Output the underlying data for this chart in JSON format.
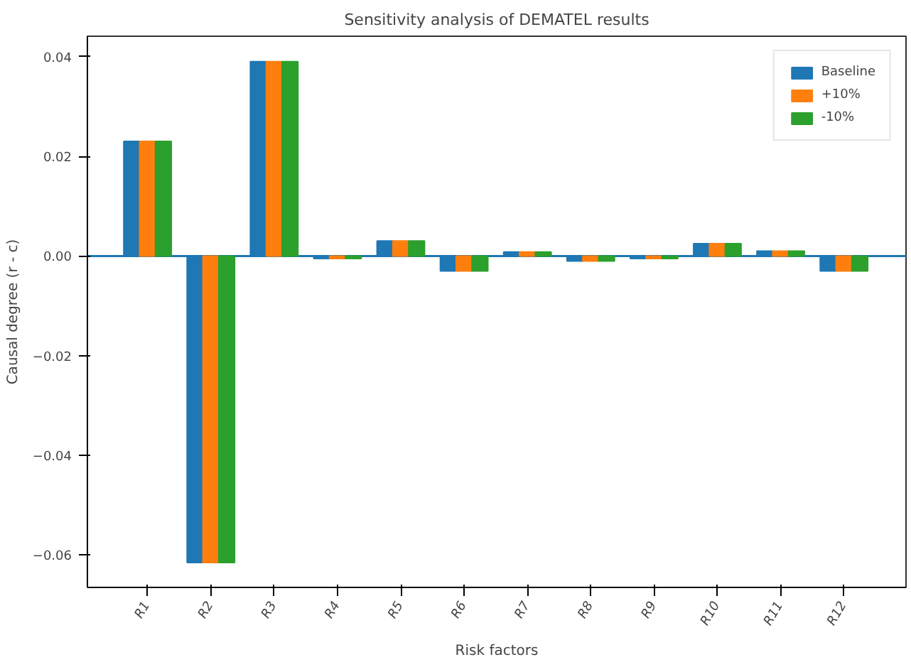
{
  "chart_data": {
    "type": "bar",
    "title": "Sensitivity analysis of DEMATEL results",
    "xlabel": "Risk factors",
    "ylabel": "Causal degree (r - c)",
    "categories": [
      "R1",
      "R2",
      "R3",
      "R4",
      "R5",
      "R6",
      "R7",
      "R8",
      "R9",
      "R10",
      "R11",
      "R12"
    ],
    "series": [
      {
        "name": "Baseline",
        "color": "#1f77b4",
        "values": [
          0.023,
          -0.0615,
          0.039,
          -0.0005,
          0.003,
          -0.003,
          0.0008,
          -0.001,
          -0.0005,
          0.0025,
          0.001,
          -0.003
        ]
      },
      {
        "name": "+10%",
        "color": "#ff7f0e",
        "values": [
          0.023,
          -0.0615,
          0.039,
          -0.0005,
          0.003,
          -0.003,
          0.0008,
          -0.001,
          -0.0005,
          0.0025,
          0.001,
          -0.003
        ]
      },
      {
        "name": "-10%",
        "color": "#2ca02c",
        "values": [
          0.023,
          -0.0615,
          0.039,
          -0.0005,
          0.003,
          -0.003,
          0.0008,
          -0.001,
          -0.0005,
          0.0025,
          0.001,
          -0.003
        ]
      }
    ],
    "ylim": [
      -0.0665,
      0.0441
    ],
    "yticks": [
      {
        "value": -0.06,
        "label": "−0.06"
      },
      {
        "value": -0.04,
        "label": "−0.04"
      },
      {
        "value": -0.02,
        "label": "−0.02"
      },
      {
        "value": 0,
        "label": "0.00"
      },
      {
        "value": 0.02,
        "label": "0.02"
      },
      {
        "value": 0.04,
        "label": "0.04"
      }
    ],
    "ref_lines": [
      {
        "axis": "y",
        "value": 0,
        "color": "#1f77b4",
        "line_style": "solid"
      }
    ],
    "grid": false,
    "legend": "top right"
  }
}
